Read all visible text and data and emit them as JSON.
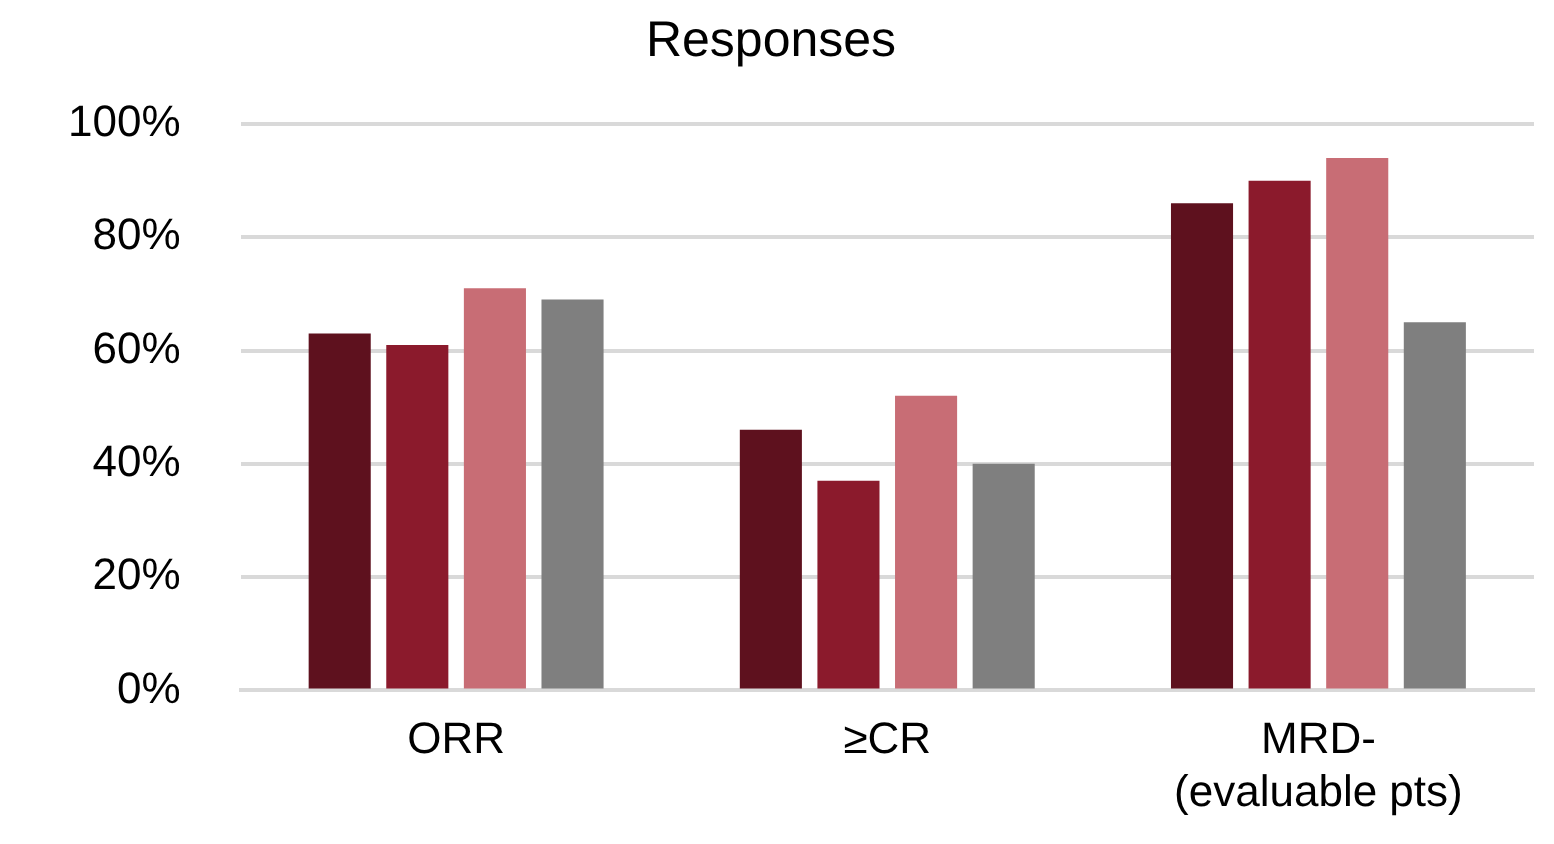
{
  "chart_data": {
    "type": "bar",
    "title": "Responses",
    "categories": [
      "ORR",
      "≥CR",
      "MRD-\n(evaluable pts)"
    ],
    "series": [
      {
        "color": "#5e111e",
        "values": [
          63,
          46,
          86
        ]
      },
      {
        "color": "#8b1a2c",
        "values": [
          61,
          37,
          90
        ]
      },
      {
        "color": "#c86d75",
        "values": [
          71,
          52,
          94
        ]
      },
      {
        "color": "#7f7f7f",
        "values": [
          69,
          40,
          65
        ]
      }
    ],
    "ylim": [
      0,
      100
    ],
    "yticks": [
      {
        "value": 0,
        "label": "0%"
      },
      {
        "value": 20,
        "label": "20%"
      },
      {
        "value": 40,
        "label": "40%"
      },
      {
        "value": 60,
        "label": "60%"
      },
      {
        "value": 80,
        "label": "80%"
      },
      {
        "value": 100,
        "label": "100%"
      }
    ],
    "grid": "y",
    "legend": false
  }
}
